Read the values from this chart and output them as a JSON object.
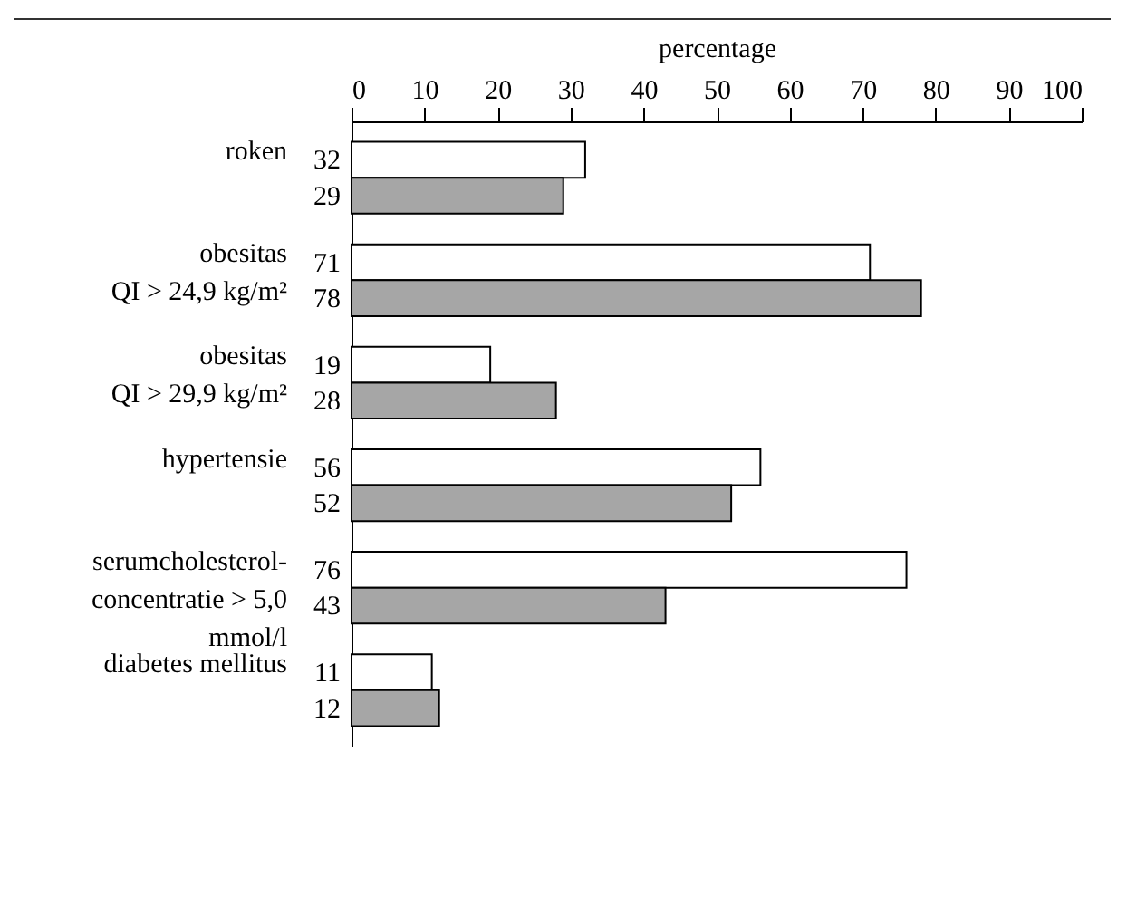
{
  "chart_data": {
    "type": "bar",
    "orientation": "horizontal",
    "xlabel": "percentage",
    "categories": [
      "roken",
      "obesitas\nQI > 24,9 kg/m²",
      "obesitas\nQI > 29,9 kg/m²",
      "hypertensie",
      "serumcholesterol-\nconcentratie > 5,0\nmmol/l",
      "diabetes mellitus"
    ],
    "series": [
      {
        "color": "#ffffff",
        "values": [
          32,
          71,
          19,
          56,
          76,
          11
        ]
      },
      {
        "color": "#a6a6a6",
        "values": [
          29,
          78,
          28,
          52,
          43,
          12
        ]
      }
    ],
    "xlim": [
      0,
      100
    ],
    "xticks": [
      0,
      10,
      20,
      30,
      40,
      50,
      60,
      70,
      80,
      90,
      100
    ],
    "data_labels": true,
    "grid": false
  }
}
